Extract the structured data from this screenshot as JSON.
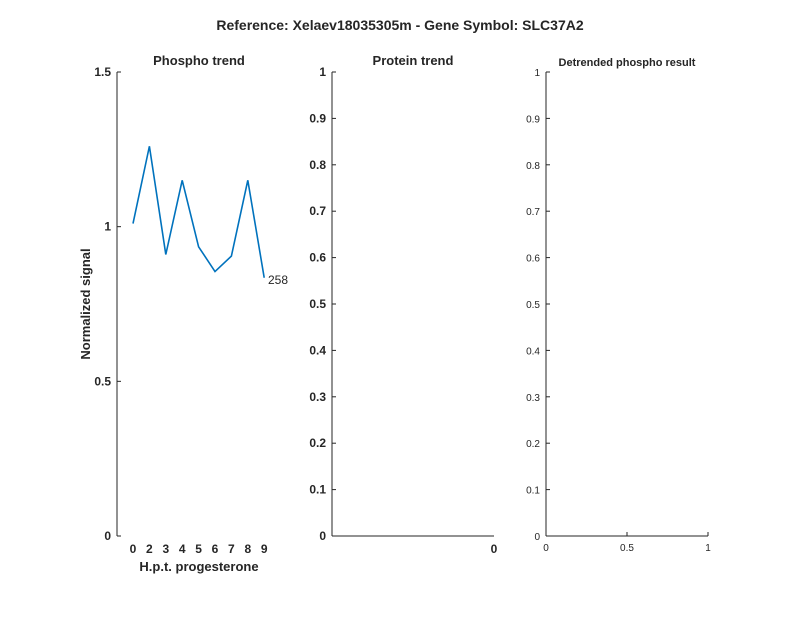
{
  "suptitle": "Reference:  Xelaev18035305m - Gene Symbol:  SLC37A2",
  "series_color": "#0072BD",
  "chart_data": [
    {
      "type": "line",
      "title": "Phospho trend",
      "xlabel": "H.p.t. progesterone",
      "ylabel": "Normalized signal",
      "x": [
        0,
        2,
        3,
        4,
        5,
        6,
        7,
        8,
        9
      ],
      "x_tick_labels": [
        "0",
        "2",
        "3",
        "4",
        "5",
        "6",
        "7",
        "8",
        "9"
      ],
      "y_ticks": [
        0,
        0.5,
        1,
        1.5
      ],
      "y_tick_labels": [
        "0",
        "0.5",
        "1",
        "1.5"
      ],
      "ylim": [
        0,
        1.5
      ],
      "series": [
        {
          "values": [
            1.01,
            1.26,
            0.91,
            1.15,
            0.935,
            0.855,
            0.905,
            1.15,
            0.835
          ]
        }
      ],
      "annotation": "258",
      "grid": false
    },
    {
      "type": "line",
      "title": "Protein trend",
      "x_tick_labels": [
        "0"
      ],
      "y_ticks": [
        0,
        0.1,
        0.2,
        0.3,
        0.4,
        0.5,
        0.6,
        0.7,
        0.8,
        0.9,
        1
      ],
      "y_tick_labels": [
        "0",
        "0.1",
        "0.2",
        "0.3",
        "0.4",
        "0.5",
        "0.6",
        "0.7",
        "0.8",
        "0.9",
        "1"
      ],
      "ylim": [
        0,
        1
      ],
      "series": [],
      "grid": false
    },
    {
      "type": "line",
      "title": "Detrended phospho result",
      "x_ticks": [
        0,
        0.5,
        1
      ],
      "x_tick_labels": [
        "0",
        "0.5",
        "1"
      ],
      "xlim": [
        0,
        1
      ],
      "y_ticks": [
        0,
        0.1,
        0.2,
        0.3,
        0.4,
        0.5,
        0.6,
        0.7,
        0.8,
        0.9,
        1
      ],
      "y_tick_labels": [
        "0",
        "0.1",
        "0.2",
        "0.3",
        "0.4",
        "0.5",
        "0.6",
        "0.7",
        "0.8",
        "0.9",
        "1"
      ],
      "ylim": [
        0,
        1
      ],
      "series": [],
      "grid": false
    }
  ]
}
